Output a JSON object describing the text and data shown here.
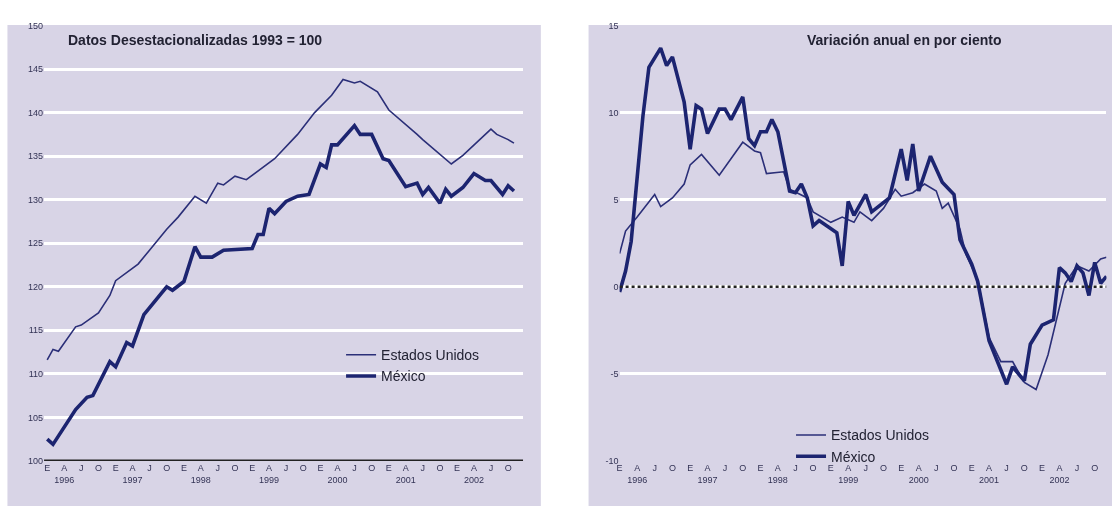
{
  "chart_data": [
    {
      "type": "line",
      "title": "Datos Desestacionalizadas 1993 = 100",
      "legend": "bottom right",
      "grid": "y",
      "ylim": [
        100,
        150
      ],
      "yticks": [
        100,
        105,
        110,
        115,
        120,
        125,
        130,
        135,
        140,
        145,
        150
      ],
      "xlim": [
        "1995-12-15",
        "2002-12-20"
      ],
      "xticks": [
        {
          "value": "1996-01",
          "label": "E"
        },
        {
          "value": "1996-04",
          "label": "A\n1996"
        },
        {
          "value": "1996-07",
          "label": "J"
        },
        {
          "value": "1996-10",
          "label": "O"
        },
        {
          "value": "1997-01",
          "label": "E"
        },
        {
          "value": "1997-04",
          "label": "A\n1997"
        },
        {
          "value": "1997-07",
          "label": "J"
        },
        {
          "value": "1997-10",
          "label": "O"
        },
        {
          "value": "1998-01",
          "label": "E"
        },
        {
          "value": "1998-04",
          "label": "A\n1998"
        },
        {
          "value": "1998-07",
          "label": "J"
        },
        {
          "value": "1998-10",
          "label": "O"
        },
        {
          "value": "1999-01",
          "label": "E"
        },
        {
          "value": "1999-04",
          "label": "A\n1999"
        },
        {
          "value": "1999-07",
          "label": "J"
        },
        {
          "value": "1999-10",
          "label": "O"
        },
        {
          "value": "2000-01",
          "label": "E"
        },
        {
          "value": "2000-04",
          "label": "A\n2000"
        },
        {
          "value": "2000-07",
          "label": "J"
        },
        {
          "value": "2000-10",
          "label": "O"
        },
        {
          "value": "2001-01",
          "label": "E"
        },
        {
          "value": "2001-04",
          "label": "A\n2001"
        },
        {
          "value": "2001-07",
          "label": "J"
        },
        {
          "value": "2001-10",
          "label": "O"
        },
        {
          "value": "2002-01",
          "label": "E"
        },
        {
          "value": "2002-04",
          "label": "A\n2002"
        },
        {
          "value": "2002-07",
          "label": "J"
        },
        {
          "value": "2002-10",
          "label": "O"
        }
      ],
      "series": [
        {
          "name": "Estados Unidos",
          "color": "#2b2f78",
          "x": [
            "1996-01",
            "1996-02",
            "1996-03",
            "1996-06",
            "1996-07",
            "1996-10",
            "1996-12",
            "1997-01",
            "1997-05",
            "1997-07",
            "1997-10",
            "1997-12",
            "1998-03",
            "1998-05",
            "1998-07",
            "1998-08",
            "1998-10",
            "1998-12",
            "1999-05",
            "1999-09",
            "1999-12",
            "2000-03",
            "2000-05",
            "2000-07",
            "2000-08",
            "2000-11",
            "2001-01",
            "2001-06",
            "2001-07",
            "2001-12",
            "2002-02",
            "2002-07",
            "2002-08",
            "2002-10",
            "2002-11"
          ],
          "values": [
            111.6,
            112.8,
            112.6,
            115.4,
            115.6,
            117,
            119,
            120.7,
            122.6,
            124.2,
            126.6,
            128,
            130.4,
            129.6,
            131.9,
            131.7,
            132.7,
            132.3,
            134.7,
            137.5,
            140,
            142,
            143.8,
            143.4,
            143.6,
            142.4,
            140.3,
            137.5,
            136.9,
            134.1,
            135.1,
            138.1,
            137.5,
            136.9,
            136.5
          ]
        },
        {
          "name": "México",
          "color": "#1c2470",
          "x": [
            "1996-01",
            "1996-02",
            "1996-06",
            "1996-08",
            "1996-09",
            "1996-12",
            "1997-01",
            "1997-03",
            "1997-04",
            "1997-06",
            "1997-09",
            "1997-10",
            "1997-11",
            "1998-01",
            "1998-03",
            "1998-04",
            "1998-06",
            "1998-08",
            "1999-01",
            "1999-02",
            "1999-03",
            "1999-04",
            "1999-05",
            "1999-07",
            "1999-09",
            "1999-11",
            "2000-01",
            "2000-02",
            "2000-03",
            "2000-04",
            "2000-07",
            "2000-08",
            "2000-10",
            "2000-12",
            "2001-01",
            "2001-04",
            "2001-06",
            "2001-07",
            "2001-08",
            "2001-10",
            "2001-11",
            "2001-12",
            "2002-02",
            "2002-04",
            "2002-06",
            "2002-07",
            "2002-09",
            "2002-10",
            "2002-11"
          ],
          "values": [
            102.5,
            101.9,
            105.9,
            107.3,
            107.5,
            111.4,
            110.8,
            113.6,
            113.2,
            116.8,
            119.2,
            120,
            119.6,
            120.6,
            124.6,
            123.4,
            123.4,
            124.2,
            124.4,
            126,
            126,
            129,
            128.4,
            129.8,
            130.4,
            130.6,
            134.1,
            133.7,
            136.3,
            136.3,
            138.5,
            137.5,
            137.5,
            134.7,
            134.5,
            131.5,
            131.9,
            130.6,
            131.4,
            129.6,
            131.2,
            130.4,
            131.4,
            133,
            132.2,
            132.2,
            130.6,
            131.6,
            131
          ]
        }
      ]
    },
    {
      "type": "line",
      "title": "Variación anual en por ciento",
      "legend": "bottom",
      "grid": "y",
      "ylim": [
        -10,
        15
      ],
      "yticks": [
        -10,
        -5,
        0,
        5,
        10,
        15
      ],
      "xlim": [
        "1996-01",
        "2002-12"
      ],
      "ref_lines": [
        {
          "axis": "y",
          "value": 0,
          "color": "#222222",
          "line_style": "dotted"
        }
      ],
      "xticks": [
        {
          "value": "1996-01",
          "label": "E"
        },
        {
          "value": "1996-04",
          "label": "A\n1996"
        },
        {
          "value": "1996-07",
          "label": "J"
        },
        {
          "value": "1996-10",
          "label": "O"
        },
        {
          "value": "1997-01",
          "label": "E"
        },
        {
          "value": "1997-04",
          "label": "A\n1997"
        },
        {
          "value": "1997-07",
          "label": "J"
        },
        {
          "value": "1997-10",
          "label": "O"
        },
        {
          "value": "1998-01",
          "label": "E"
        },
        {
          "value": "1998-04",
          "label": "A\n1998"
        },
        {
          "value": "1998-07",
          "label": "J"
        },
        {
          "value": "1998-10",
          "label": "O"
        },
        {
          "value": "1999-01",
          "label": "E"
        },
        {
          "value": "1999-04",
          "label": "A\n1999"
        },
        {
          "value": "1999-07",
          "label": "J"
        },
        {
          "value": "1999-10",
          "label": "O"
        },
        {
          "value": "2000-01",
          "label": "E"
        },
        {
          "value": "2000-04",
          "label": "A\n2000"
        },
        {
          "value": "2000-07",
          "label": "J"
        },
        {
          "value": "2000-10",
          "label": "O"
        },
        {
          "value": "2001-01",
          "label": "E"
        },
        {
          "value": "2001-04",
          "label": "A\n2001"
        },
        {
          "value": "2001-07",
          "label": "J"
        },
        {
          "value": "2001-10",
          "label": "O"
        },
        {
          "value": "2002-01",
          "label": "E"
        },
        {
          "value": "2002-04",
          "label": "A\n2002"
        },
        {
          "value": "2002-07",
          "label": "J"
        },
        {
          "value": "2002-10",
          "label": "O"
        }
      ],
      "series": [
        {
          "name": "Estados Unidos",
          "color": "#2b2f78",
          "x": [
            "1996-01",
            "1996-02",
            "1996-04",
            "1996-07",
            "1996-08",
            "1996-10",
            "1996-12",
            "1997-01",
            "1997-03",
            "1997-06",
            "1997-10",
            "1997-12",
            "1998-01",
            "1998-02",
            "1998-05",
            "1998-06",
            "1998-09",
            "1998-10",
            "1999-01",
            "1999-03",
            "1999-05",
            "1999-06",
            "1999-08",
            "1999-10",
            "1999-12",
            "2000-01",
            "2000-03",
            "2000-05",
            "2000-07",
            "2000-08",
            "2000-09",
            "2000-11",
            "2000-12",
            "2001-02",
            "2001-04",
            "2001-06",
            "2001-08",
            "2001-10",
            "2001-12",
            "2002-02",
            "2002-05",
            "2002-07",
            "2002-09",
            "2002-11",
            "2002-12"
          ],
          "values": [
            1.9,
            3.2,
            4,
            5.3,
            4.6,
            5.1,
            5.9,
            7,
            7.6,
            6.4,
            8.3,
            7.8,
            7.7,
            6.5,
            6.6,
            5.6,
            5.1,
            4.3,
            3.7,
            4,
            3.7,
            4.3,
            3.8,
            4.5,
            5.6,
            5.2,
            5.4,
            5.9,
            5.5,
            4.5,
            4.8,
            3.3,
            1.9,
            0.4,
            -2.9,
            -4.3,
            -4.3,
            -5.5,
            -5.9,
            -3.9,
            0.2,
            1.2,
            0.9,
            1.6,
            1.7
          ]
        },
        {
          "name": "México",
          "color": "#1c2470",
          "x": [
            "1996-01",
            "1996-02",
            "1996-03",
            "1996-05",
            "1996-06",
            "1996-08",
            "1996-09",
            "1996-10",
            "1996-12",
            "1997-01",
            "1997-02",
            "1997-03",
            "1997-04",
            "1997-06",
            "1997-07",
            "1997-08",
            "1997-10",
            "1997-11",
            "1997-12",
            "1998-01",
            "1998-02",
            "1998-03",
            "1998-04",
            "1998-06",
            "1998-07",
            "1998-08",
            "1998-09",
            "1998-10",
            "1998-11",
            "1999-02",
            "1999-03",
            "1999-04",
            "1999-05",
            "1999-07",
            "1999-08",
            "1999-11",
            "2000-01",
            "2000-02",
            "2000-03",
            "2000-04",
            "2000-06",
            "2000-08",
            "2000-10",
            "2000-11",
            "2001-01",
            "2001-02",
            "2001-04",
            "2001-07",
            "2001-08",
            "2001-10",
            "2001-11",
            "2002-01",
            "2002-03",
            "2002-04",
            "2002-05",
            "2002-06",
            "2002-07",
            "2002-08",
            "2002-09",
            "2002-10",
            "2002-11",
            "2002-12"
          ],
          "values": [
            -0.3,
            0.9,
            2.6,
            9.8,
            12.6,
            13.7,
            12.7,
            13.2,
            10.6,
            7.9,
            10.4,
            10.2,
            8.8,
            10.2,
            10.2,
            9.6,
            10.9,
            8.5,
            8.1,
            8.9,
            8.9,
            9.6,
            8.9,
            5.5,
            5.4,
            5.9,
            5.1,
            3.5,
            3.8,
            3.1,
            1.2,
            4.9,
            4.1,
            5.3,
            4.3,
            5.1,
            7.9,
            6.1,
            8.2,
            5.5,
            7.5,
            6,
            5.3,
            2.7,
            1.3,
            0.3,
            -3.1,
            -5.6,
            -4.6,
            -5.4,
            -3.3,
            -2.2,
            -1.9,
            1.1,
            0.8,
            0.3,
            1.2,
            0.8,
            -0.5,
            1.4,
            0.2,
            0.6
          ]
        }
      ]
    }
  ]
}
